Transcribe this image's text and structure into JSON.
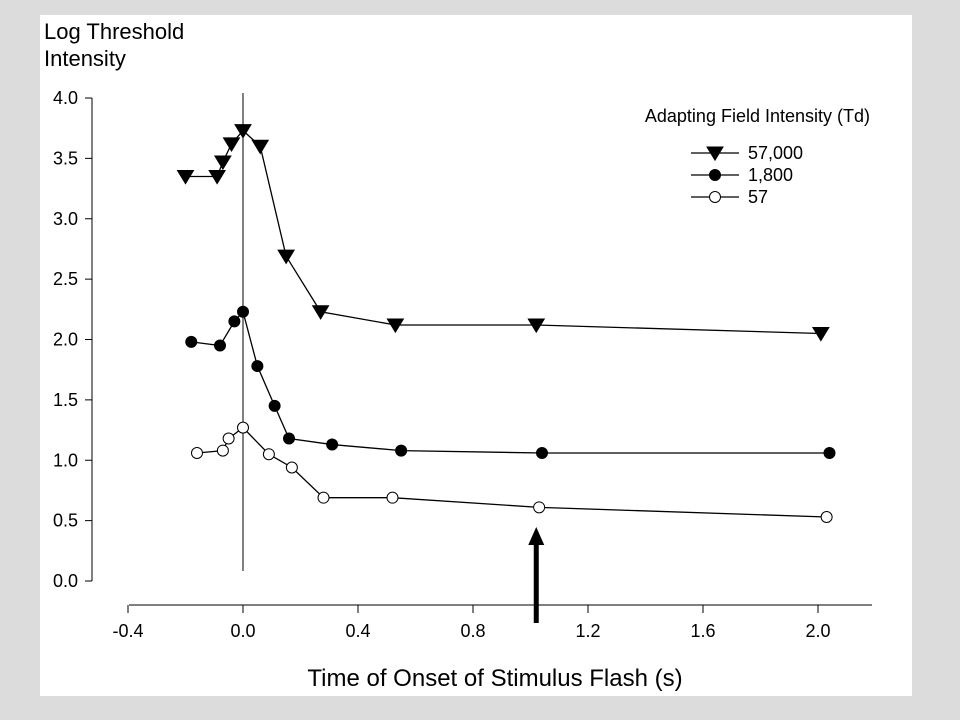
{
  "chart_data": {
    "type": "line",
    "title_line1": "Log Threshold",
    "title_line2": "Intensity",
    "xlabel": "Time of Onset of Stimulus Flash (s)",
    "ylabel": "",
    "xlim": [
      -0.4,
      2.2
    ],
    "ylim": [
      0.0,
      4.0
    ],
    "x_ticks": [
      "-0.4",
      "0.0",
      "0.4",
      "0.8",
      "1.2",
      "1.6",
      "2.0"
    ],
    "x_tick_values": [
      -0.4,
      0.0,
      0.4,
      0.8,
      1.2,
      1.6,
      2.0
    ],
    "y_ticks": [
      "0.0",
      "0.5",
      "1.0",
      "1.5",
      "2.0",
      "2.5",
      "3.0",
      "3.5",
      "4.0"
    ],
    "y_tick_values": [
      0.0,
      0.5,
      1.0,
      1.5,
      2.0,
      2.5,
      3.0,
      3.5,
      4.0
    ],
    "vertical_reference_x": 0.0,
    "legend_title": "Adapting Field Intensity (Td)",
    "legend_placement": "top-right",
    "arrow_x": 1.02,
    "series": [
      {
        "name": "57,000",
        "marker": "triangle-down-filled",
        "points": [
          {
            "x": -0.2,
            "y": 3.35
          },
          {
            "x": -0.09,
            "y": 3.35
          },
          {
            "x": -0.07,
            "y": 3.47
          },
          {
            "x": -0.04,
            "y": 3.62
          },
          {
            "x": 0.0,
            "y": 3.73
          },
          {
            "x": 0.06,
            "y": 3.6
          },
          {
            "x": 0.15,
            "y": 2.69
          },
          {
            "x": 0.27,
            "y": 2.23
          },
          {
            "x": 0.53,
            "y": 2.12
          },
          {
            "x": 1.02,
            "y": 2.12
          },
          {
            "x": 2.01,
            "y": 2.05
          }
        ]
      },
      {
        "name": "1,800",
        "marker": "circle-filled",
        "points": [
          {
            "x": -0.18,
            "y": 1.98
          },
          {
            "x": -0.08,
            "y": 1.95
          },
          {
            "x": -0.03,
            "y": 2.15
          },
          {
            "x": 0.0,
            "y": 2.23
          },
          {
            "x": 0.05,
            "y": 1.78
          },
          {
            "x": 0.11,
            "y": 1.45
          },
          {
            "x": 0.16,
            "y": 1.18
          },
          {
            "x": 0.31,
            "y": 1.13
          },
          {
            "x": 0.55,
            "y": 1.08
          },
          {
            "x": 1.04,
            "y": 1.06
          },
          {
            "x": 2.04,
            "y": 1.06
          }
        ]
      },
      {
        "name": "57",
        "marker": "circle-open",
        "points": [
          {
            "x": -0.16,
            "y": 1.06
          },
          {
            "x": -0.07,
            "y": 1.08
          },
          {
            "x": -0.05,
            "y": 1.18
          },
          {
            "x": 0.0,
            "y": 1.27
          },
          {
            "x": 0.09,
            "y": 1.05
          },
          {
            "x": 0.17,
            "y": 0.94
          },
          {
            "x": 0.28,
            "y": 0.69
          },
          {
            "x": 0.52,
            "y": 0.69
          },
          {
            "x": 1.03,
            "y": 0.61
          },
          {
            "x": 2.03,
            "y": 0.53
          }
        ]
      }
    ]
  }
}
